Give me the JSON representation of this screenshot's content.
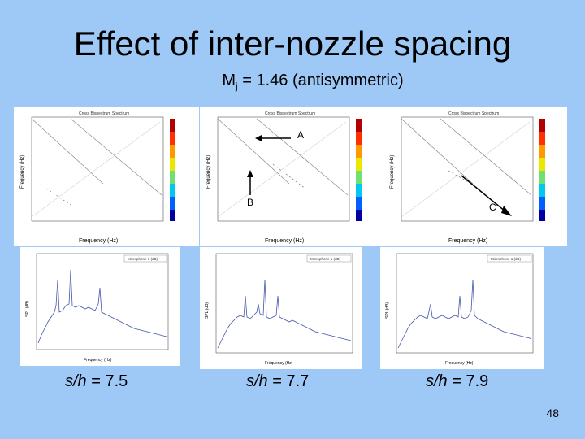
{
  "slide": {
    "title": "Effect of inter-nozzle spacing",
    "subtitle_main": "M",
    "subtitle_sub": "j",
    "subtitle_rest": " = 1.46 (antisymmetric)",
    "page_number": "48"
  },
  "bispectrum_plots": [
    {
      "title": "Cross Bispectrum Spectrum",
      "xlabel": "Frequency (Hz)",
      "ylabel": "Frequency (Hz)"
    },
    {
      "title": "Cross Bispectrum Spectrum",
      "xlabel": "Frequency (Hz)",
      "ylabel": "Frequency (Hz)"
    },
    {
      "title": "Cross Bispectrum Spectrum",
      "xlabel": "Frequency (Hz)",
      "ylabel": "Frequency (Hz)"
    }
  ],
  "arrow_labels": {
    "a": "A",
    "b": "B",
    "c": "C"
  },
  "spectrum_plots": [
    {
      "legend": "Microphone 1 (dB)",
      "xlabel": "Frequency (Hz)",
      "ylabel": "SPL (dB)"
    },
    {
      "legend": "Microphone 1 (dB)",
      "xlabel": "Frequency (Hz)",
      "ylabel": "SPL (dB)"
    },
    {
      "legend": "Microphone 1 (dB)",
      "xlabel": "Frequency (Hz)",
      "ylabel": "SPL (dB)"
    }
  ],
  "captions": [
    {
      "var": "s/h",
      "rest": " = 7.5"
    },
    {
      "var": "s/h",
      "rest": " = 7.7"
    },
    {
      "var": "s/h",
      "rest": " = 7.9"
    }
  ]
}
